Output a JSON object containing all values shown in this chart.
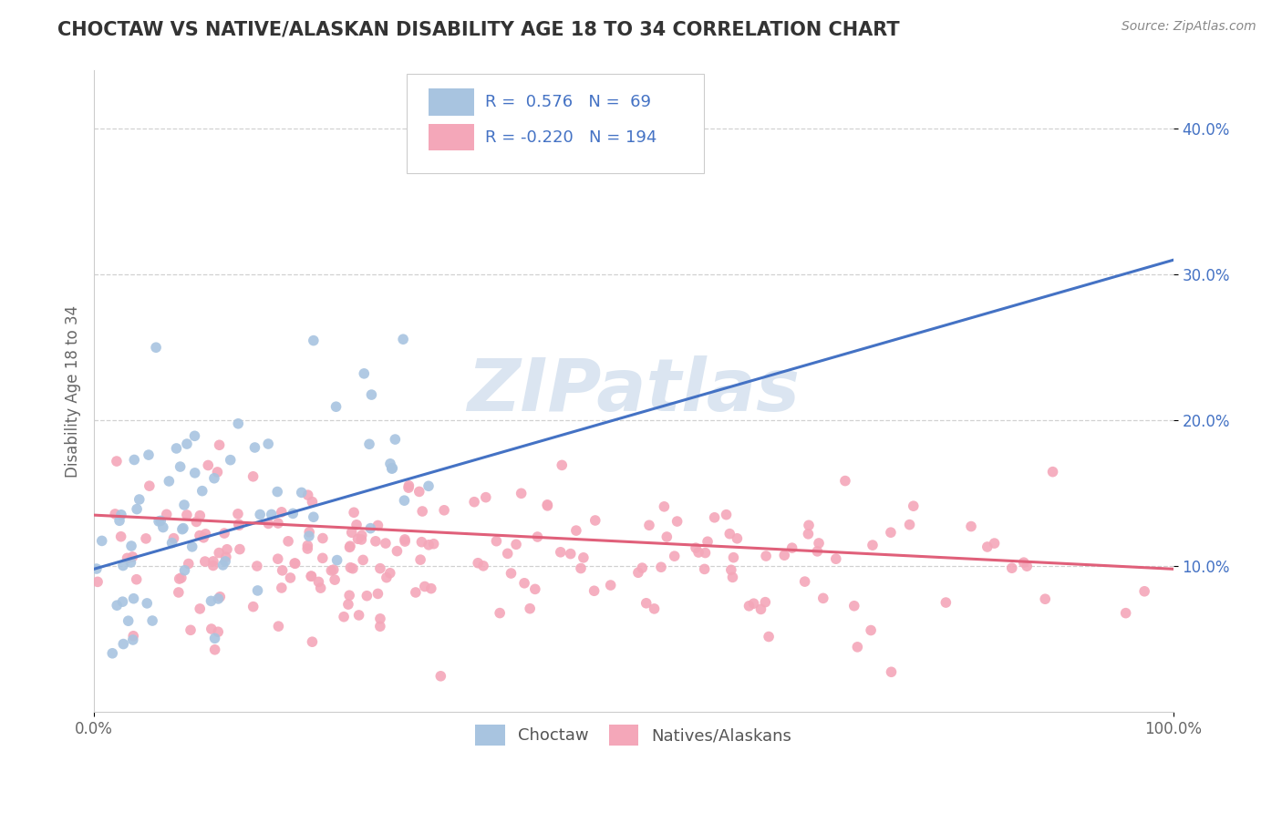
{
  "title": "CHOCTAW VS NATIVE/ALASKAN DISABILITY AGE 18 TO 34 CORRELATION CHART",
  "source": "Source: ZipAtlas.com",
  "ylabel": "Disability Age 18 to 34",
  "xlim": [
    0,
    1.0
  ],
  "ylim": [
    0,
    0.44
  ],
  "xticks": [
    0.0,
    1.0
  ],
  "xtick_labels": [
    "0.0%",
    "100.0%"
  ],
  "yticks": [
    0.1,
    0.2,
    0.3,
    0.4
  ],
  "ytick_labels": [
    "10.0%",
    "20.0%",
    "30.0%",
    "40.0%"
  ],
  "choctaw_color": "#a8c4e0",
  "choctaw_line_color": "#4472c4",
  "native_color": "#f4a7b9",
  "native_line_color": "#e0607a",
  "choctaw_label": "Choctaw",
  "native_label": "Natives/Alaskans",
  "choctaw_R": 0.576,
  "choctaw_N": 69,
  "native_R": -0.22,
  "native_N": 194,
  "choctaw_trend_x": [
    0.0,
    1.0
  ],
  "choctaw_trend_y": [
    0.098,
    0.31
  ],
  "native_trend_x": [
    0.0,
    1.0
  ],
  "native_trend_y": [
    0.135,
    0.098
  ],
  "background_color": "#ffffff",
  "grid_color": "#cccccc",
  "title_color": "#333333",
  "source_color": "#888888",
  "watermark_color": "#c8d8ea",
  "watermark_text": "ZIPatlas"
}
